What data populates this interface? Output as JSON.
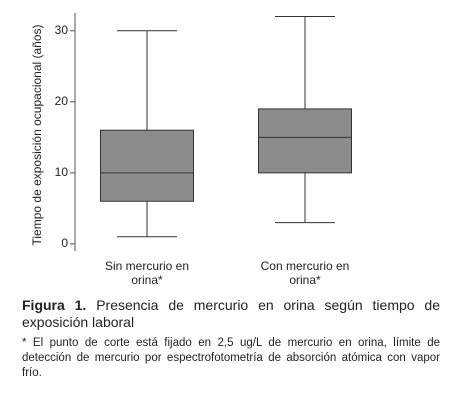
{
  "chart_data": {
    "type": "box",
    "y_label": "Tiempo de exposición ocupacional (años)",
    "categories": [
      "Sin mercurio en orina*",
      "Con mercurio en orina*"
    ],
    "boxes": [
      {
        "min": 1,
        "q1": 6,
        "median": 10,
        "q3": 16,
        "max": 30
      },
      {
        "min": 3,
        "q1": 10,
        "median": 15,
        "q3": 19,
        "max": 32
      }
    ],
    "color": "#8c8c8c",
    "ylim": [
      -1,
      32.5
    ],
    "yticks": [
      0,
      10,
      20,
      30
    ]
  },
  "caption": {
    "label": "Figura 1.",
    "text": "Presencia de mercurio en orina según tiempo de exposición laboral",
    "footnote": "* El punto de corte está fijado en 2,5 ug/L de mercurio en orina, límite de detección de mercurio por espectrofotometría de absorción atómica con vapor frío."
  }
}
